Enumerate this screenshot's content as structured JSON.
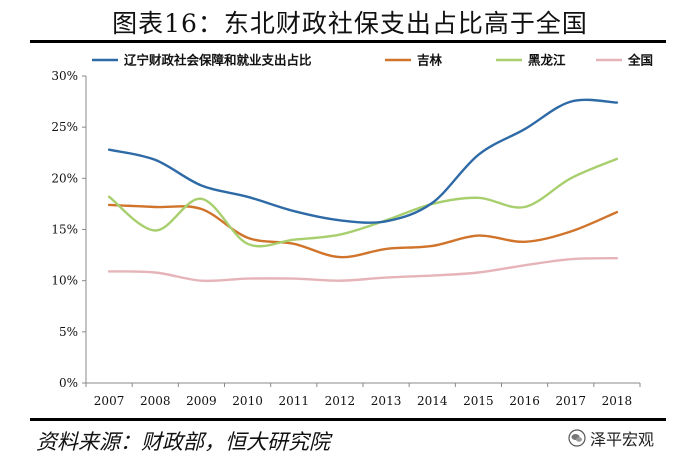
{
  "title": "图表16：东北财政社保支出占比高于全国",
  "source": "资料来源：财政部，恒大研究院",
  "watermark": "泽平宏观",
  "chart_data": {
    "type": "line",
    "title": "图表16：东北财政社保支出占比高于全国",
    "xlabel": "",
    "ylabel": "",
    "x": [
      "2007",
      "2008",
      "2009",
      "2010",
      "2011",
      "2012",
      "2013",
      "2014",
      "2015",
      "2016",
      "2017",
      "2018"
    ],
    "yticks": [
      "0%",
      "5%",
      "10%",
      "15%",
      "20%",
      "25%",
      "30%"
    ],
    "ylim": [
      0,
      30
    ],
    "grid": false,
    "legend_position": "top",
    "series": [
      {
        "name": "辽宁财政社会保障和就业支出占比",
        "color": "#2e6aa6",
        "values": [
          22.8,
          21.8,
          19.3,
          18.2,
          16.8,
          15.9,
          15.8,
          17.6,
          22.3,
          24.8,
          27.5,
          27.4
        ]
      },
      {
        "name": "吉林",
        "color": "#d0742c",
        "values": [
          17.4,
          17.2,
          17.0,
          14.2,
          13.6,
          12.3,
          13.1,
          13.4,
          14.4,
          13.8,
          14.8,
          16.7
        ]
      },
      {
        "name": "黑龙江",
        "color": "#a8cf6e",
        "values": [
          18.2,
          14.9,
          18.0,
          13.6,
          14.0,
          14.5,
          15.9,
          17.5,
          18.1,
          17.2,
          20.0,
          21.9
        ]
      },
      {
        "name": "全国",
        "color": "#e6b4b8",
        "values": [
          10.9,
          10.8,
          10.0,
          10.2,
          10.2,
          10.0,
          10.3,
          10.5,
          10.8,
          11.5,
          12.1,
          12.2
        ]
      }
    ]
  }
}
